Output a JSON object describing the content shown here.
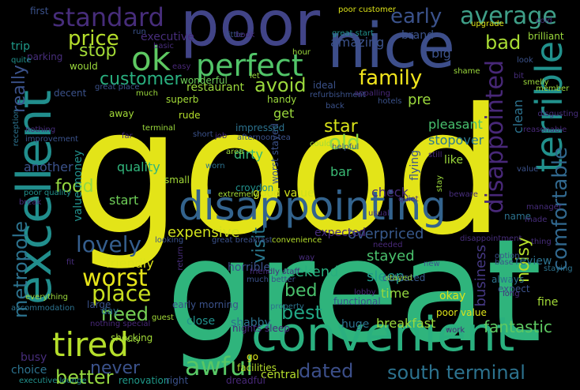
{
  "word_cloud": {
    "background": "#000000",
    "palette": "viridis",
    "words": [
      {
        "text": "good",
        "color": "#e3e418"
      },
      {
        "text": "great",
        "color": "#2fb47c"
      },
      {
        "text": "poor",
        "color": "#414487"
      },
      {
        "text": "nice",
        "color": "#3d4e8a"
      },
      {
        "text": "convenient",
        "color": "#2ab07f"
      },
      {
        "text": "excellent",
        "color": "#218e8d"
      },
      {
        "text": "disappointing",
        "color": "#33638d"
      },
      {
        "text": "terrible",
        "color": "#21918c"
      },
      {
        "text": "perfect",
        "color": "#52c569"
      },
      {
        "text": "ok",
        "color": "#5ec962"
      },
      {
        "text": "tired",
        "color": "#b5de2b"
      },
      {
        "text": "awful",
        "color": "#58c765"
      },
      {
        "text": "standard",
        "color": "#472d7b"
      },
      {
        "text": "average",
        "color": "#3f9f88"
      },
      {
        "text": "disappointed",
        "color": "#482878"
      },
      {
        "text": "worst",
        "color": "#e7e419"
      },
      {
        "text": "place",
        "color": "#c8e020"
      },
      {
        "text": "metropole",
        "color": "#2c728e"
      },
      {
        "text": "need",
        "color": "#75d054"
      },
      {
        "text": "comfortable",
        "color": "#31688e"
      },
      {
        "text": "family",
        "color": "#f1e51d"
      },
      {
        "text": "bad",
        "color": "#a8db34"
      },
      {
        "text": "price",
        "color": "#b5de2b"
      },
      {
        "text": "stop",
        "color": "#a2da37"
      },
      {
        "text": "customer",
        "color": "#29af7f"
      },
      {
        "text": "avoid",
        "color": "#9bd93c"
      },
      {
        "text": "early",
        "color": "#3b528b"
      },
      {
        "text": "lovely",
        "color": "#355e8d"
      },
      {
        "text": "dated",
        "color": "#3c4f8a"
      },
      {
        "text": "south terminal",
        "color": "#2c728e"
      },
      {
        "text": "better",
        "color": "#95d840"
      },
      {
        "text": "never",
        "color": "#3b528b"
      },
      {
        "text": "best",
        "color": "#21a685"
      },
      {
        "text": "bed",
        "color": "#4ac16d"
      },
      {
        "text": "star",
        "color": "#d8e219"
      },
      {
        "text": "old",
        "color": "#8bd646"
      },
      {
        "text": "visit",
        "color": "#2a788e"
      },
      {
        "text": "really",
        "color": "#3b528b"
      },
      {
        "text": "business",
        "color": "#453882"
      },
      {
        "text": "fantastic",
        "color": "#5ec962"
      },
      {
        "text": "overpriced",
        "color": "#38598c"
      },
      {
        "text": "food",
        "color": "#95d840"
      },
      {
        "text": "weekend",
        "color": "#29af7f"
      },
      {
        "text": "amazing",
        "color": "#3b528b"
      },
      {
        "text": "quality",
        "color": "#31b57b"
      },
      {
        "text": "noisy",
        "color": "#b5de2b"
      },
      {
        "text": "expensive",
        "color": "#d0e11c"
      },
      {
        "text": "stayed",
        "color": "#4ac16d"
      },
      {
        "text": "sleep",
        "color": "#1f9a8a"
      },
      {
        "text": "time",
        "color": "#95d840"
      },
      {
        "text": "friendly",
        "color": "#dde318"
      },
      {
        "text": "dirty",
        "color": "#35b779"
      },
      {
        "text": "get",
        "color": "#9bd93c"
      },
      {
        "text": "pre",
        "color": "#9bd93c"
      },
      {
        "text": "horrible",
        "color": "#3b528b"
      },
      {
        "text": "breakfast",
        "color": "#9bd93c"
      },
      {
        "text": "start",
        "color": "#6ece58"
      },
      {
        "text": "check",
        "color": "#472d7b"
      },
      {
        "text": "pleasant",
        "color": "#48c16e"
      },
      {
        "text": "stopover",
        "color": "#2a788e"
      },
      {
        "text": "bar",
        "color": "#3bbb75"
      },
      {
        "text": "another",
        "color": "#3b528b"
      },
      {
        "text": "value money",
        "color": "#21918c"
      },
      {
        "text": "expected",
        "color": "#472d7b"
      },
      {
        "text": "good value",
        "color": "#d0e11c"
      },
      {
        "text": "restaurant",
        "color": "#9bd93c"
      },
      {
        "text": "brand",
        "color": "#3b528b"
      },
      {
        "text": "big",
        "color": "#3b528b"
      },
      {
        "text": "clean",
        "color": "#2c728e"
      },
      {
        "text": "flying",
        "color": "#3b528b"
      },
      {
        "text": "like",
        "color": "#9bd93c"
      },
      {
        "text": "review",
        "color": "#2c728e"
      },
      {
        "text": "fine",
        "color": "#a2da37"
      },
      {
        "text": "busy",
        "color": "#472d7b"
      },
      {
        "text": "choice",
        "color": "#2c728e"
      },
      {
        "text": "close",
        "color": "#21918c"
      },
      {
        "text": "central",
        "color": "#b5de2b"
      },
      {
        "text": "huge",
        "color": "#2c728e"
      },
      {
        "text": "okay",
        "color": "#dde318"
      },
      {
        "text": "shabby",
        "color": "#2c728e"
      },
      {
        "text": "nights sleep",
        "color": "#472d7b"
      },
      {
        "text": "croydon",
        "color": "#21918c"
      },
      {
        "text": "worst stayed",
        "color": "#3b528b"
      },
      {
        "text": "name",
        "color": "#2c728e"
      },
      {
        "text": "expect",
        "color": "#3b528b"
      },
      {
        "text": "always",
        "color": "#2c728e"
      },
      {
        "text": "executive",
        "color": "#472d7b"
      },
      {
        "text": "trip",
        "color": "#1f9a8a"
      },
      {
        "text": "dreadful",
        "color": "#482878"
      },
      {
        "text": "renovation",
        "color": "#1f9a8a"
      },
      {
        "text": "executive lounge",
        "color": "#21918c"
      },
      {
        "text": "facilities",
        "color": "#b5de2b"
      },
      {
        "text": "right",
        "color": "#3b528b"
      },
      {
        "text": "ideal",
        "color": "#3b528b"
      },
      {
        "text": "small",
        "color": "#a2da37"
      },
      {
        "text": "handy",
        "color": "#9bd93c"
      },
      {
        "text": "outdated",
        "color": "#38598c"
      },
      {
        "text": "impressed",
        "color": "#2c728e"
      },
      {
        "text": "rude",
        "color": "#b5de2b"
      },
      {
        "text": "away",
        "color": "#a2da37"
      },
      {
        "text": "superb",
        "color": "#a2da37"
      },
      {
        "text": "wonderful",
        "color": "#6ece58"
      },
      {
        "text": "would",
        "color": "#9bd93c"
      },
      {
        "text": "decent",
        "color": "#3b528b"
      },
      {
        "text": "shocking",
        "color": "#a2da37"
      },
      {
        "text": "large",
        "color": "#3b528b"
      },
      {
        "text": "early morning",
        "color": "#3b528b"
      },
      {
        "text": "day",
        "color": "#2c728e"
      },
      {
        "text": "functional",
        "color": "#3b528b"
      },
      {
        "text": "property",
        "color": "#2c728e"
      },
      {
        "text": "stayed",
        "color": "#95d840"
      },
      {
        "text": "first",
        "color": "#3b528b"
      },
      {
        "text": "parking",
        "color": "#472d7b"
      },
      {
        "text": "quite",
        "color": "#21918c"
      },
      {
        "text": "nothing",
        "color": "#472d7b"
      },
      {
        "text": "improvement",
        "color": "#3b528b"
      },
      {
        "text": "poor quality",
        "color": "#21918c"
      },
      {
        "text": "break",
        "color": "#472d7b"
      },
      {
        "text": "accommodation",
        "color": "#2c728e"
      },
      {
        "text": "everything",
        "color": "#9bd93c"
      },
      {
        "text": "poor value",
        "color": "#dde318"
      },
      {
        "text": "great start",
        "color": "#21918c"
      },
      {
        "text": "great place",
        "color": "#3b528b"
      },
      {
        "text": "great breakfast",
        "color": "#3b528b"
      },
      {
        "text": "convenience",
        "color": "#b5de2b"
      },
      {
        "text": "disappointment",
        "color": "#472d7b"
      },
      {
        "text": "lobby",
        "color": "#482878"
      },
      {
        "text": "staying",
        "color": "#2c728e"
      },
      {
        "text": "brilliant",
        "color": "#9bd93c"
      },
      {
        "text": "upgrade",
        "color": "#dde318"
      },
      {
        "text": "cold",
        "color": "#472d7b"
      },
      {
        "text": "look",
        "color": "#3b528b"
      },
      {
        "text": "bit",
        "color": "#472d7b"
      },
      {
        "text": "smelly",
        "color": "#9bd93c"
      },
      {
        "text": "shame",
        "color": "#9bd93c"
      },
      {
        "text": "hotels",
        "color": "#3b528b"
      },
      {
        "text": "appalling",
        "color": "#482878"
      },
      {
        "text": "little",
        "color": "#3b528b"
      },
      {
        "text": "hour",
        "color": "#9bd93c"
      },
      {
        "text": "book",
        "color": "#472d7b"
      },
      {
        "text": "poor customer",
        "color": "#dde318"
      },
      {
        "text": "reasonable",
        "color": "#482878"
      },
      {
        "text": "beware",
        "color": "#472d7b"
      },
      {
        "text": "usual",
        "color": "#472d7b"
      },
      {
        "text": "helpful",
        "color": "#3b528b"
      },
      {
        "text": "still",
        "color": "#482878"
      },
      {
        "text": "much",
        "color": "#9bd93c"
      },
      {
        "text": "far",
        "color": "#472d7b"
      },
      {
        "text": "area",
        "color": "#9bd93c"
      },
      {
        "text": "extremely",
        "color": "#a2da37"
      },
      {
        "text": "let",
        "color": "#9bd93c"
      },
      {
        "text": "guest",
        "color": "#a2da37"
      },
      {
        "text": "city",
        "color": "#9bd93c"
      },
      {
        "text": "work",
        "color": "#482878"
      },
      {
        "text": "run",
        "color": "#3b528b"
      },
      {
        "text": "basic",
        "color": "#472d7b"
      },
      {
        "text": "easy",
        "color": "#482878"
      },
      {
        "text": "go",
        "color": "#dde318"
      },
      {
        "text": "worn",
        "color": "#2c728e"
      },
      {
        "text": "reception",
        "color": "#2c728e"
      },
      {
        "text": "thing",
        "color": "#472d7b"
      },
      {
        "text": "option",
        "color": "#3b528b"
      },
      {
        "text": "base",
        "color": "#3b528b"
      },
      {
        "text": "manager",
        "color": "#472d7b"
      },
      {
        "text": "value",
        "color": "#3b528b"
      },
      {
        "text": "made",
        "color": "#472d7b"
      },
      {
        "text": "member",
        "color": "#9bd93c"
      },
      {
        "text": "quiet",
        "color": "#482878"
      },
      {
        "text": "refurbishment",
        "color": "#3b528b"
      },
      {
        "text": "back",
        "color": "#3b528b"
      },
      {
        "text": "terminal",
        "color": "#9bd93c"
      },
      {
        "text": "afternoon tea",
        "color": "#3b528b"
      },
      {
        "text": "could",
        "color": "#a2da37"
      },
      {
        "text": "needed",
        "color": "#482878"
      },
      {
        "text": "long",
        "color": "#472d7b"
      },
      {
        "text": "way",
        "color": "#472d7b"
      },
      {
        "text": "new",
        "color": "#3b528b"
      },
      {
        "text": "looking",
        "color": "#3b528b"
      },
      {
        "text": "return",
        "color": "#472d7b"
      },
      {
        "text": "short",
        "color": "#3b528b"
      },
      {
        "text": "job",
        "color": "#472d7b"
      },
      {
        "text": "much better",
        "color": "#3b528b"
      },
      {
        "text": "stay",
        "color": "#9bd93c"
      },
      {
        "text": "disgusting",
        "color": "#472d7b"
      },
      {
        "text": "fit",
        "color": "#472d7b"
      },
      {
        "text": "friendly staff",
        "color": "#472d7b"
      },
      {
        "text": "nothing special",
        "color": "#482878"
      },
      {
        "text": "priced",
        "color": "#21918c"
      }
    ]
  }
}
